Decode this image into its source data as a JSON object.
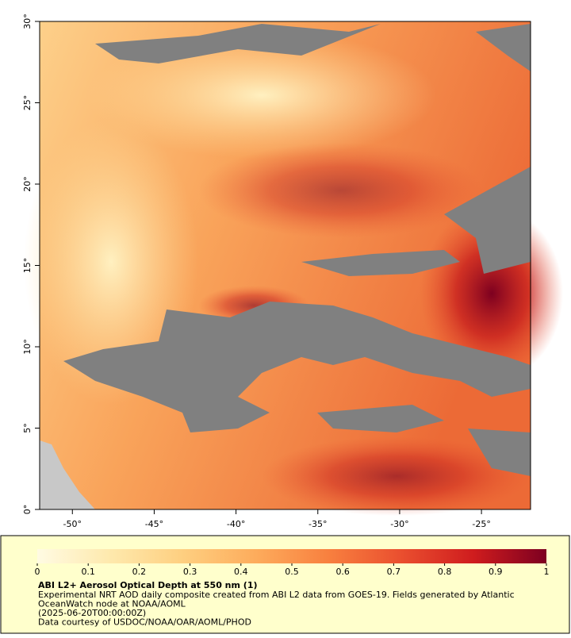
{
  "map": {
    "xlim": [
      -52,
      -22
    ],
    "ylim": [
      0,
      30
    ],
    "xticks": [
      {
        "value": -50,
        "label": "-50°"
      },
      {
        "value": -45,
        "label": "-45°"
      },
      {
        "value": -40,
        "label": "-40°"
      },
      {
        "value": -35,
        "label": "-35°"
      },
      {
        "value": -30,
        "label": "-30°"
      },
      {
        "value": -25,
        "label": "-25°"
      }
    ],
    "yticks": [
      {
        "value": 0,
        "label": "0°"
      },
      {
        "value": 5,
        "label": "5°"
      },
      {
        "value": 10,
        "label": "10°"
      },
      {
        "value": 15,
        "label": "15°"
      },
      {
        "value": 20,
        "label": "20°"
      },
      {
        "value": 25,
        "label": "25°"
      },
      {
        "value": 30,
        "label": "30°"
      }
    ]
  },
  "colorbar": {
    "lim": [
      0,
      1
    ],
    "ticks": [
      0,
      0.1,
      0.2,
      0.3,
      0.4,
      0.5,
      0.6,
      0.7,
      0.8,
      0.9,
      1
    ],
    "colors": [
      "#fffbe3",
      "#fee9ad",
      "#fecf80",
      "#fdac5c",
      "#f8803f",
      "#ea4f2f",
      "#cf1c1e",
      "#7d0020"
    ]
  },
  "caption": {
    "title": "ABI L2+ Aerosol Optical Depth at 550 nm (1)",
    "lines": [
      "Experimental NRT AOD daily composite created from ABI L2 data from GOES-19. Fields generated by Atlantic",
      "OceanWatch node at NOAA/AOML",
      "(2025-06-20T00:00:00Z)",
      "Data courtesy of USDOC/NOAA/OAR/AOML/PHOD"
    ]
  }
}
